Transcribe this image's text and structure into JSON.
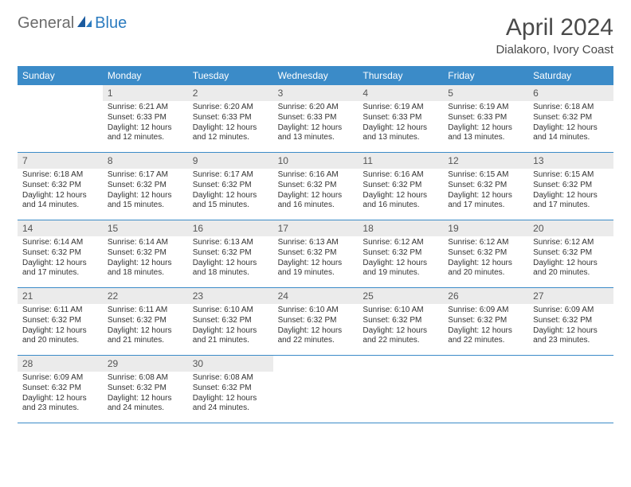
{
  "logo": {
    "text1": "General",
    "text2": "Blue"
  },
  "title": "April 2024",
  "location": "Dialakoro, Ivory Coast",
  "colors": {
    "header_bg": "#3b8bc8",
    "header_text": "#ffffff",
    "daynum_bg": "#ebebeb",
    "border": "#3b8bc8",
    "logo_gray": "#6b6b6b",
    "logo_blue": "#2b7bbf"
  },
  "day_names": [
    "Sunday",
    "Monday",
    "Tuesday",
    "Wednesday",
    "Thursday",
    "Friday",
    "Saturday"
  ],
  "weeks": [
    [
      {
        "n": "",
        "sr": "",
        "ss": "",
        "dl": ""
      },
      {
        "n": "1",
        "sr": "Sunrise: 6:21 AM",
        "ss": "Sunset: 6:33 PM",
        "dl": "Daylight: 12 hours and 12 minutes."
      },
      {
        "n": "2",
        "sr": "Sunrise: 6:20 AM",
        "ss": "Sunset: 6:33 PM",
        "dl": "Daylight: 12 hours and 12 minutes."
      },
      {
        "n": "3",
        "sr": "Sunrise: 6:20 AM",
        "ss": "Sunset: 6:33 PM",
        "dl": "Daylight: 12 hours and 13 minutes."
      },
      {
        "n": "4",
        "sr": "Sunrise: 6:19 AM",
        "ss": "Sunset: 6:33 PM",
        "dl": "Daylight: 12 hours and 13 minutes."
      },
      {
        "n": "5",
        "sr": "Sunrise: 6:19 AM",
        "ss": "Sunset: 6:33 PM",
        "dl": "Daylight: 12 hours and 13 minutes."
      },
      {
        "n": "6",
        "sr": "Sunrise: 6:18 AM",
        "ss": "Sunset: 6:32 PM",
        "dl": "Daylight: 12 hours and 14 minutes."
      }
    ],
    [
      {
        "n": "7",
        "sr": "Sunrise: 6:18 AM",
        "ss": "Sunset: 6:32 PM",
        "dl": "Daylight: 12 hours and 14 minutes."
      },
      {
        "n": "8",
        "sr": "Sunrise: 6:17 AM",
        "ss": "Sunset: 6:32 PM",
        "dl": "Daylight: 12 hours and 15 minutes."
      },
      {
        "n": "9",
        "sr": "Sunrise: 6:17 AM",
        "ss": "Sunset: 6:32 PM",
        "dl": "Daylight: 12 hours and 15 minutes."
      },
      {
        "n": "10",
        "sr": "Sunrise: 6:16 AM",
        "ss": "Sunset: 6:32 PM",
        "dl": "Daylight: 12 hours and 16 minutes."
      },
      {
        "n": "11",
        "sr": "Sunrise: 6:16 AM",
        "ss": "Sunset: 6:32 PM",
        "dl": "Daylight: 12 hours and 16 minutes."
      },
      {
        "n": "12",
        "sr": "Sunrise: 6:15 AM",
        "ss": "Sunset: 6:32 PM",
        "dl": "Daylight: 12 hours and 17 minutes."
      },
      {
        "n": "13",
        "sr": "Sunrise: 6:15 AM",
        "ss": "Sunset: 6:32 PM",
        "dl": "Daylight: 12 hours and 17 minutes."
      }
    ],
    [
      {
        "n": "14",
        "sr": "Sunrise: 6:14 AM",
        "ss": "Sunset: 6:32 PM",
        "dl": "Daylight: 12 hours and 17 minutes."
      },
      {
        "n": "15",
        "sr": "Sunrise: 6:14 AM",
        "ss": "Sunset: 6:32 PM",
        "dl": "Daylight: 12 hours and 18 minutes."
      },
      {
        "n": "16",
        "sr": "Sunrise: 6:13 AM",
        "ss": "Sunset: 6:32 PM",
        "dl": "Daylight: 12 hours and 18 minutes."
      },
      {
        "n": "17",
        "sr": "Sunrise: 6:13 AM",
        "ss": "Sunset: 6:32 PM",
        "dl": "Daylight: 12 hours and 19 minutes."
      },
      {
        "n": "18",
        "sr": "Sunrise: 6:12 AM",
        "ss": "Sunset: 6:32 PM",
        "dl": "Daylight: 12 hours and 19 minutes."
      },
      {
        "n": "19",
        "sr": "Sunrise: 6:12 AM",
        "ss": "Sunset: 6:32 PM",
        "dl": "Daylight: 12 hours and 20 minutes."
      },
      {
        "n": "20",
        "sr": "Sunrise: 6:12 AM",
        "ss": "Sunset: 6:32 PM",
        "dl": "Daylight: 12 hours and 20 minutes."
      }
    ],
    [
      {
        "n": "21",
        "sr": "Sunrise: 6:11 AM",
        "ss": "Sunset: 6:32 PM",
        "dl": "Daylight: 12 hours and 20 minutes."
      },
      {
        "n": "22",
        "sr": "Sunrise: 6:11 AM",
        "ss": "Sunset: 6:32 PM",
        "dl": "Daylight: 12 hours and 21 minutes."
      },
      {
        "n": "23",
        "sr": "Sunrise: 6:10 AM",
        "ss": "Sunset: 6:32 PM",
        "dl": "Daylight: 12 hours and 21 minutes."
      },
      {
        "n": "24",
        "sr": "Sunrise: 6:10 AM",
        "ss": "Sunset: 6:32 PM",
        "dl": "Daylight: 12 hours and 22 minutes."
      },
      {
        "n": "25",
        "sr": "Sunrise: 6:10 AM",
        "ss": "Sunset: 6:32 PM",
        "dl": "Daylight: 12 hours and 22 minutes."
      },
      {
        "n": "26",
        "sr": "Sunrise: 6:09 AM",
        "ss": "Sunset: 6:32 PM",
        "dl": "Daylight: 12 hours and 22 minutes."
      },
      {
        "n": "27",
        "sr": "Sunrise: 6:09 AM",
        "ss": "Sunset: 6:32 PM",
        "dl": "Daylight: 12 hours and 23 minutes."
      }
    ],
    [
      {
        "n": "28",
        "sr": "Sunrise: 6:09 AM",
        "ss": "Sunset: 6:32 PM",
        "dl": "Daylight: 12 hours and 23 minutes."
      },
      {
        "n": "29",
        "sr": "Sunrise: 6:08 AM",
        "ss": "Sunset: 6:32 PM",
        "dl": "Daylight: 12 hours and 24 minutes."
      },
      {
        "n": "30",
        "sr": "Sunrise: 6:08 AM",
        "ss": "Sunset: 6:32 PM",
        "dl": "Daylight: 12 hours and 24 minutes."
      },
      {
        "n": "",
        "sr": "",
        "ss": "",
        "dl": ""
      },
      {
        "n": "",
        "sr": "",
        "ss": "",
        "dl": ""
      },
      {
        "n": "",
        "sr": "",
        "ss": "",
        "dl": ""
      },
      {
        "n": "",
        "sr": "",
        "ss": "",
        "dl": ""
      }
    ]
  ]
}
